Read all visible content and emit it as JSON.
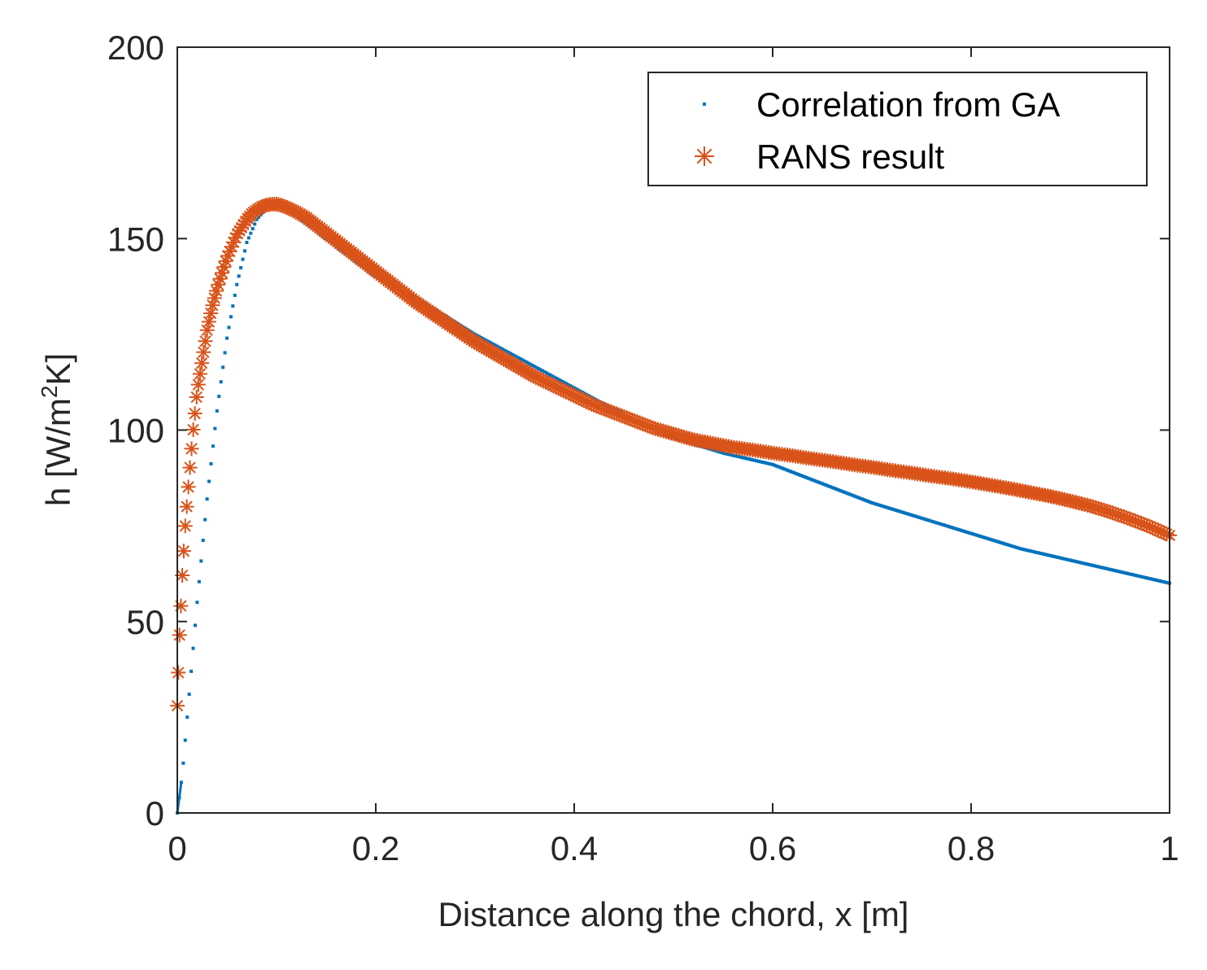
{
  "chart_data": {
    "type": "line",
    "title": "",
    "xlabel": "Distance along the chord, x [m]",
    "ylabel": {
      "prefix": "h [W/m",
      "superscript": "2",
      "suffix": "K]"
    },
    "xlim": [
      0,
      1
    ],
    "ylim": [
      0,
      200
    ],
    "xticks": [
      0,
      0.2,
      0.4,
      0.6,
      0.8,
      1
    ],
    "xtick_labels": [
      "0",
      "0.2",
      "0.4",
      "0.6",
      "0.8",
      "1"
    ],
    "yticks": [
      0,
      50,
      100,
      150,
      200
    ],
    "ytick_labels": [
      "0",
      "50",
      "100",
      "150",
      "200"
    ],
    "grid": false,
    "legend_position": "top-right",
    "series": [
      {
        "name": "Correlation from GA",
        "marker": "point",
        "color": "#0072BD",
        "x": [
          0,
          0.005,
          0.01,
          0.02,
          0.03,
          0.04,
          0.05,
          0.06,
          0.07,
          0.08,
          0.09,
          0.1,
          0.11,
          0.12,
          0.14,
          0.16,
          0.18,
          0.2,
          0.25,
          0.3,
          0.35,
          0.4,
          0.45,
          0.5,
          0.55,
          0.6,
          0.65,
          0.7,
          0.75,
          0.8,
          0.85,
          0.9,
          0.95,
          1.0
        ],
        "y": [
          0,
          10,
          25,
          55,
          82,
          105,
          124,
          138,
          149,
          155,
          158,
          159,
          158,
          156,
          152,
          148,
          144,
          140,
          133,
          125,
          118,
          111,
          104,
          98,
          94,
          91,
          86,
          81,
          77,
          73,
          69,
          66,
          63,
          60
        ]
      },
      {
        "name": "RANS result",
        "marker": "asterisk",
        "color": "#D95319",
        "x": [
          0,
          0.002,
          0.005,
          0.008,
          0.012,
          0.016,
          0.02,
          0.025,
          0.03,
          0.035,
          0.04,
          0.045,
          0.05,
          0.055,
          0.06,
          0.065,
          0.07,
          0.075,
          0.08,
          0.085,
          0.09,
          0.095,
          0.1,
          0.105,
          0.11,
          0.12,
          0.13,
          0.14,
          0.15,
          0.16,
          0.17,
          0.18,
          0.19,
          0.2,
          0.22,
          0.24,
          0.26,
          0.28,
          0.3,
          0.32,
          0.34,
          0.36,
          0.38,
          0.4,
          0.42,
          0.44,
          0.46,
          0.48,
          0.5,
          0.52,
          0.54,
          0.56,
          0.58,
          0.6,
          0.62,
          0.64,
          0.66,
          0.68,
          0.7,
          0.72,
          0.74,
          0.76,
          0.78,
          0.8,
          0.82,
          0.84,
          0.86,
          0.88,
          0.9,
          0.92,
          0.94,
          0.96,
          0.98,
          1.0
        ],
        "y": [
          28,
          45,
          62,
          75,
          88,
          100,
          110,
          118,
          126,
          132,
          137,
          141,
          145,
          148,
          151,
          153,
          155,
          156.5,
          157.5,
          158.3,
          158.8,
          159,
          159,
          158.7,
          158.2,
          157,
          155.5,
          153.5,
          151.5,
          149.5,
          147.5,
          145.5,
          143.5,
          141.5,
          137.5,
          133.5,
          130,
          126.5,
          123,
          120,
          117,
          114,
          111.5,
          109,
          106.5,
          104.5,
          102.5,
          100.5,
          99,
          97.5,
          96.5,
          95.5,
          94.8,
          94,
          93.3,
          92.5,
          91.8,
          91,
          90.3,
          89.5,
          88.8,
          88,
          87.3,
          86.5,
          85.6,
          84.7,
          83.7,
          82.7,
          81.5,
          80.2,
          78.6,
          76.8,
          74.8,
          72.5
        ]
      }
    ]
  }
}
